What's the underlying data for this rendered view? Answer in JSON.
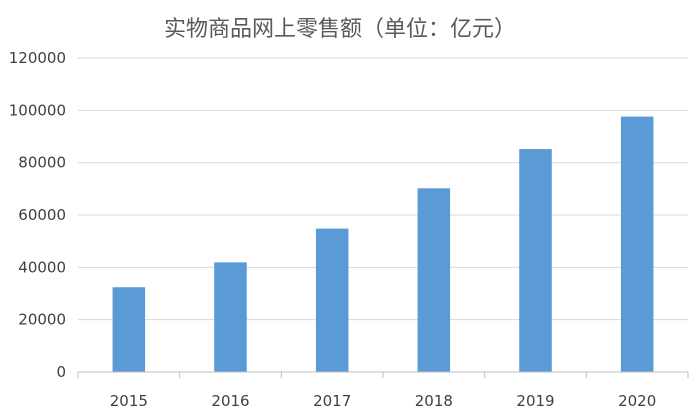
{
  "chart_data": {
    "type": "bar",
    "title": "实物商品网上零售额（单位：亿元）",
    "xlabel": "",
    "ylabel": "",
    "categories": [
      "2015",
      "2016",
      "2017",
      "2018",
      "2019",
      "2020"
    ],
    "series": [
      {
        "values": [
          32400,
          41900,
          54800,
          70200,
          85200,
          97600
        ]
      }
    ],
    "ylim": [
      0,
      120000
    ],
    "yticks": [
      "0",
      "20000",
      "40000",
      "60000",
      "80000",
      "100000",
      "120000"
    ],
    "grid": true,
    "legend": "none",
    "colors": {
      "bar": "#5b9bd5"
    }
  }
}
